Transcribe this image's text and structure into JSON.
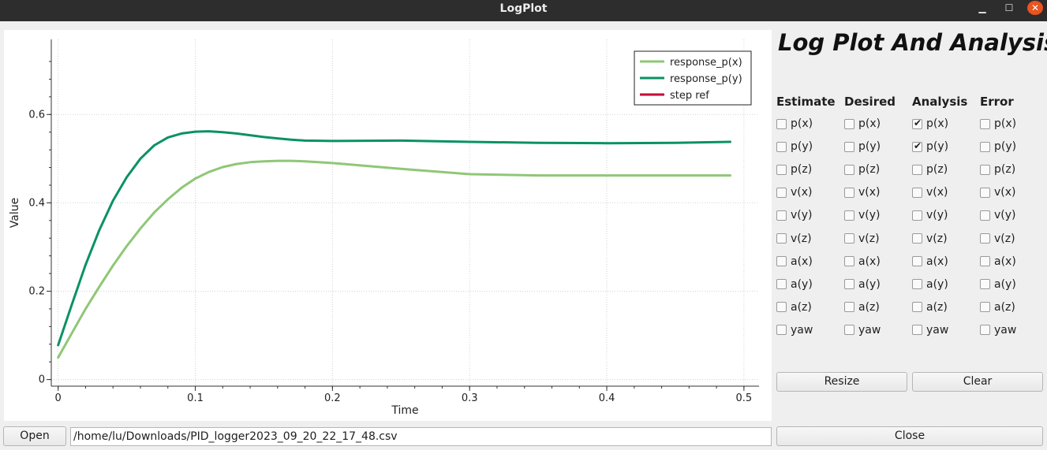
{
  "window": {
    "title": "LogPlot",
    "min_icon": "minimize-icon",
    "max_icon": "maximize-icon",
    "close_icon": "close-icon"
  },
  "panel": {
    "heading": "Log Plot And Analysis"
  },
  "columns": [
    {
      "header": "Estimate",
      "items": [
        {
          "label": "p(x)",
          "checked": false
        },
        {
          "label": "p(y)",
          "checked": false
        },
        {
          "label": "p(z)",
          "checked": false
        },
        {
          "label": "v(x)",
          "checked": false
        },
        {
          "label": "v(y)",
          "checked": false
        },
        {
          "label": "v(z)",
          "checked": false
        },
        {
          "label": "a(x)",
          "checked": false
        },
        {
          "label": "a(y)",
          "checked": false
        },
        {
          "label": "a(z)",
          "checked": false
        },
        {
          "label": "yaw",
          "checked": false
        }
      ]
    },
    {
      "header": "Desired",
      "items": [
        {
          "label": "p(x)",
          "checked": false
        },
        {
          "label": "p(y)",
          "checked": false
        },
        {
          "label": "p(z)",
          "checked": false
        },
        {
          "label": "v(x)",
          "checked": false
        },
        {
          "label": "v(y)",
          "checked": false
        },
        {
          "label": "v(z)",
          "checked": false
        },
        {
          "label": "a(x)",
          "checked": false
        },
        {
          "label": "a(y)",
          "checked": false
        },
        {
          "label": "a(z)",
          "checked": false
        },
        {
          "label": "yaw",
          "checked": false
        }
      ]
    },
    {
      "header": "Analysis",
      "items": [
        {
          "label": "p(x)",
          "checked": true
        },
        {
          "label": "p(y)",
          "checked": true
        },
        {
          "label": "p(z)",
          "checked": false
        },
        {
          "label": "v(x)",
          "checked": false
        },
        {
          "label": "v(y)",
          "checked": false
        },
        {
          "label": "v(z)",
          "checked": false
        },
        {
          "label": "a(x)",
          "checked": false
        },
        {
          "label": "a(y)",
          "checked": false
        },
        {
          "label": "a(z)",
          "checked": false
        },
        {
          "label": "yaw",
          "checked": false
        }
      ]
    },
    {
      "header": "Error",
      "items": [
        {
          "label": "p(x)",
          "checked": false
        },
        {
          "label": "p(y)",
          "checked": false
        },
        {
          "label": "p(z)",
          "checked": false
        },
        {
          "label": "v(x)",
          "checked": false
        },
        {
          "label": "v(y)",
          "checked": false
        },
        {
          "label": "v(z)",
          "checked": false
        },
        {
          "label": "a(x)",
          "checked": false
        },
        {
          "label": "a(y)",
          "checked": false
        },
        {
          "label": "a(z)",
          "checked": false
        },
        {
          "label": "yaw",
          "checked": false
        }
      ]
    }
  ],
  "buttons": {
    "resize": "Resize",
    "clear": "Clear",
    "open": "Open",
    "close": "Close"
  },
  "file": {
    "path": "/home/lu/Downloads/PID_logger2023_09_20_22_17_48.csv"
  },
  "chart_data": {
    "type": "line",
    "title": "",
    "xlabel": "Time",
    "ylabel": "Value",
    "xlim": [
      -0.005,
      0.511
    ],
    "ylim": [
      -0.015,
      0.77
    ],
    "xticks": [
      0,
      0.1,
      0.2,
      0.3,
      0.4,
      0.5
    ],
    "xtick_labels": [
      "0",
      "0.1",
      "0.2",
      "0.3",
      "0.4",
      "0.5"
    ],
    "yticks": [
      0,
      0.2,
      0.4,
      0.6
    ],
    "ytick_labels": [
      "0",
      "0.2",
      "0.4",
      "0.6"
    ],
    "grid": true,
    "legend": "top-right",
    "series": [
      {
        "name": "response_p(x)",
        "color": "#8fc776",
        "x": [
          0,
          0.01,
          0.02,
          0.03,
          0.04,
          0.05,
          0.06,
          0.07,
          0.08,
          0.09,
          0.1,
          0.11,
          0.12,
          0.13,
          0.14,
          0.15,
          0.16,
          0.17,
          0.18,
          0.2,
          0.25,
          0.3,
          0.35,
          0.4,
          0.45,
          0.49
        ],
        "y": [
          0.05,
          0.105,
          0.16,
          0.21,
          0.258,
          0.302,
          0.342,
          0.378,
          0.408,
          0.434,
          0.455,
          0.47,
          0.481,
          0.488,
          0.492,
          0.494,
          0.495,
          0.495,
          0.494,
          0.49,
          0.477,
          0.465,
          0.462,
          0.462,
          0.462,
          0.462
        ]
      },
      {
        "name": "response_p(y)",
        "color": "#0a9263",
        "x": [
          0,
          0.01,
          0.02,
          0.03,
          0.04,
          0.05,
          0.06,
          0.07,
          0.08,
          0.09,
          0.1,
          0.11,
          0.12,
          0.13,
          0.14,
          0.15,
          0.16,
          0.17,
          0.18,
          0.2,
          0.25,
          0.3,
          0.35,
          0.4,
          0.45,
          0.49
        ],
        "y": [
          0.078,
          0.17,
          0.26,
          0.338,
          0.405,
          0.458,
          0.5,
          0.53,
          0.548,
          0.557,
          0.561,
          0.562,
          0.56,
          0.557,
          0.553,
          0.549,
          0.546,
          0.543,
          0.541,
          0.54,
          0.541,
          0.538,
          0.536,
          0.535,
          0.536,
          0.538
        ]
      },
      {
        "name": "step ref",
        "color": "#c8003a",
        "x": [],
        "y": []
      }
    ]
  }
}
